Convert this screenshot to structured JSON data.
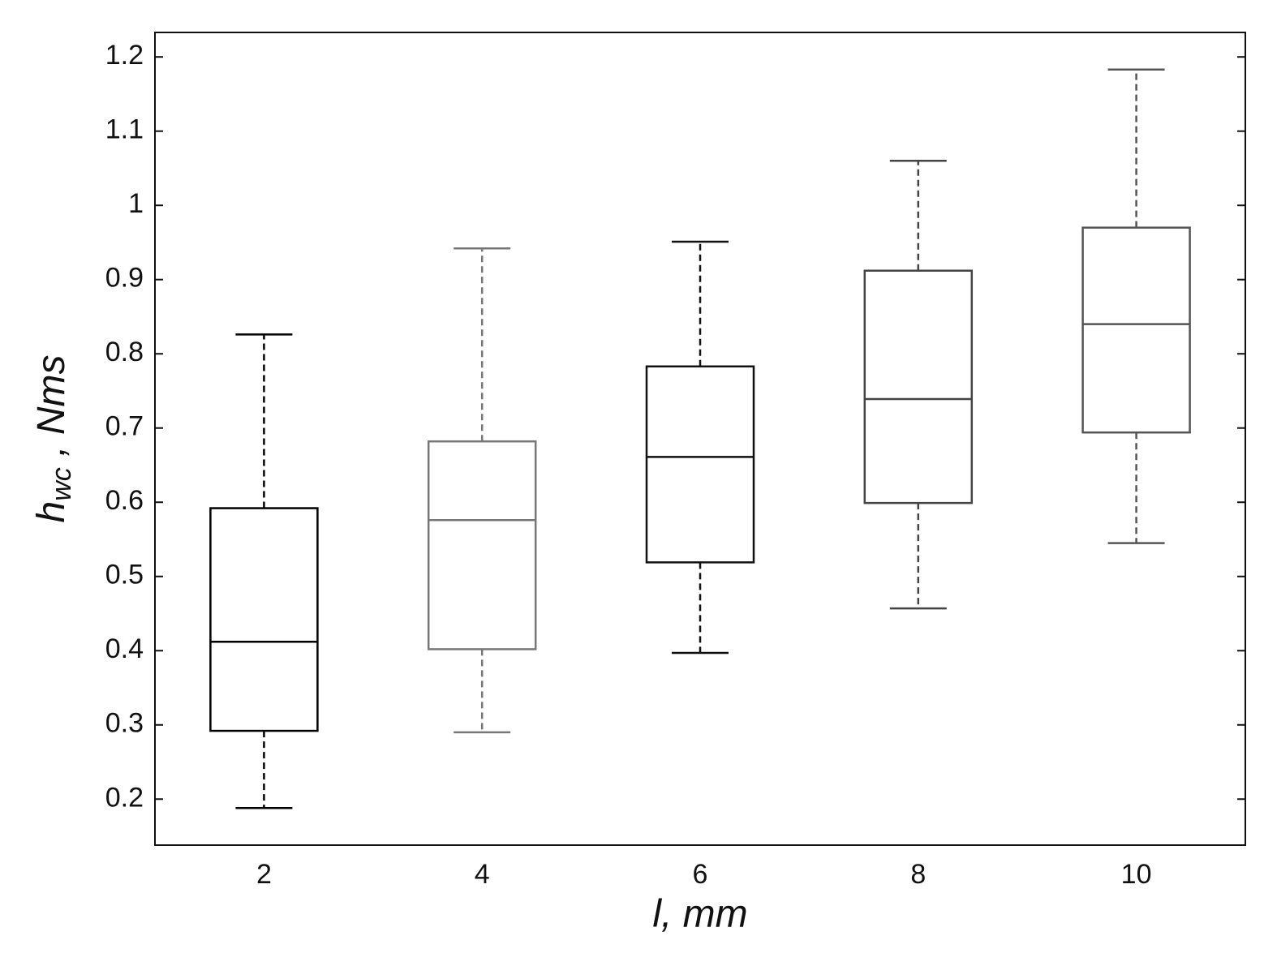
{
  "chart_data": {
    "type": "box",
    "xlabel": "l, mm",
    "ylabel": {
      "main": "h",
      "sub": "wc",
      "rest": " , Nms"
    },
    "categories": [
      "2",
      "4",
      "6",
      "8",
      "10"
    ],
    "boxes": [
      {
        "whisker_low": 0.188,
        "q1": 0.292,
        "median": 0.412,
        "q3": 0.592,
        "whisker_high": 0.826
      },
      {
        "whisker_low": 0.29,
        "q1": 0.402,
        "median": 0.576,
        "q3": 0.682,
        "whisker_high": 0.942
      },
      {
        "whisker_low": 0.397,
        "q1": 0.519,
        "median": 0.661,
        "q3": 0.783,
        "whisker_high": 0.951
      },
      {
        "whisker_low": 0.457,
        "q1": 0.599,
        "median": 0.739,
        "q3": 0.912,
        "whisker_high": 1.06
      },
      {
        "whisker_low": 0.545,
        "q1": 0.694,
        "median": 0.84,
        "q3": 0.97,
        "whisker_high": 1.183
      }
    ],
    "colors": [
      "#000000",
      "#777777",
      "#111111",
      "#444444",
      "#555555"
    ],
    "ylim": [
      0.138,
      1.233
    ],
    "yticks": [
      0.2,
      0.3,
      0.4,
      0.5,
      0.6,
      0.7,
      0.8,
      0.9,
      1,
      1.1,
      1.2
    ],
    "grid": false
  }
}
